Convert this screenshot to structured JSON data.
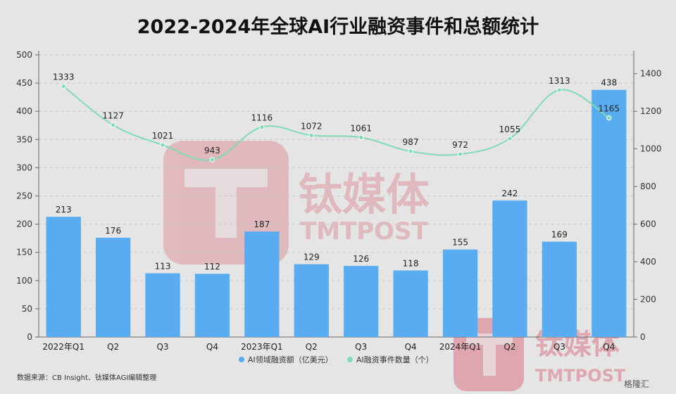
{
  "chart_data": {
    "type": "bar",
    "title": "2022-2024年全球AI行业融资事件和总额统计",
    "categories": [
      "2022年Q1",
      "Q2",
      "Q3",
      "Q4",
      "2023年Q1",
      "Q2",
      "Q3",
      "Q4",
      "2024年Q1",
      "Q2",
      "Q3",
      "Q4"
    ],
    "series": [
      {
        "name": "AI领域融资额（亿美元）",
        "type": "bar",
        "axis": "left",
        "color": "#5aacf0",
        "values": [
          213,
          176,
          113,
          112,
          187,
          129,
          126,
          118,
          155,
          242,
          169,
          438
        ]
      },
      {
        "name": "AI融资事件数量（个）",
        "type": "line",
        "axis": "right",
        "color": "#7fdcb5",
        "values": [
          1333,
          1127,
          1021,
          943,
          1116,
          1072,
          1061,
          987,
          972,
          1055,
          1313,
          1165
        ]
      }
    ],
    "left_axis": {
      "min": 0,
      "max": 500,
      "ticks": [
        0,
        50,
        100,
        150,
        200,
        250,
        300,
        350,
        400,
        450,
        500
      ]
    },
    "right_axis": {
      "min": 0,
      "max": 1500,
      "ticks": [
        0,
        200,
        400,
        600,
        800,
        1000,
        1200,
        1400
      ]
    },
    "grid": true,
    "legend_position": "bottom"
  },
  "source_note": "数据来源：CB Insight、钛媒体AGI编辑整理",
  "watermark": {
    "cn": "钛媒体",
    "en": "TMTPOST",
    "corner": "钛媒体",
    "sub": "格隆汇"
  }
}
